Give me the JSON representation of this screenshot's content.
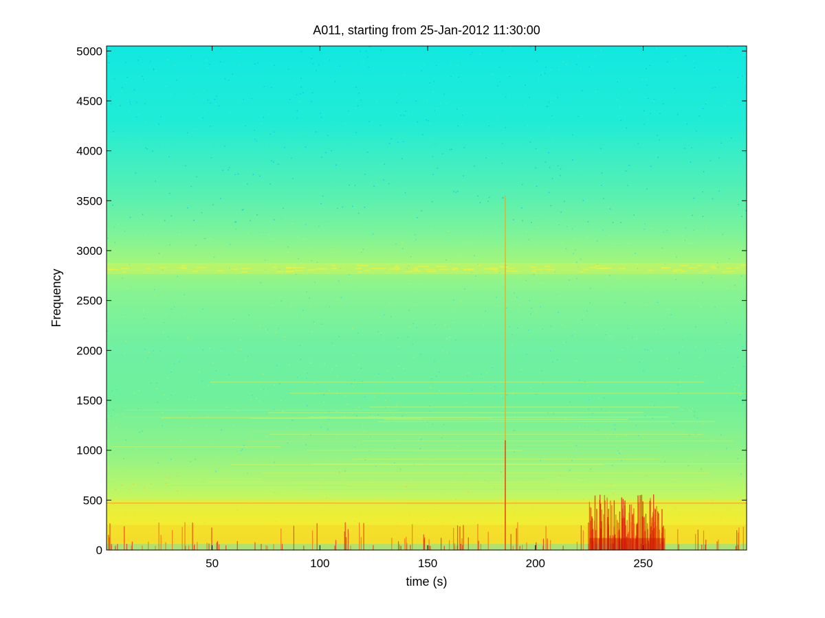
{
  "chart_data": {
    "type": "heatmap",
    "subtype": "spectrogram",
    "title": "A011, starting from 25-Jan-2012 11:30:00",
    "xlabel": "time (s)",
    "ylabel": "Frequency",
    "xlim": [
      1,
      298
    ],
    "ylim": [
      0,
      5050
    ],
    "xticks": [
      50,
      100,
      150,
      200,
      250
    ],
    "xtick_labels": [
      "50",
      "100",
      "150",
      "200",
      "250"
    ],
    "yticks": [
      0,
      500,
      1000,
      1500,
      2000,
      2500,
      3000,
      3500,
      4000,
      4500,
      5000
    ],
    "ytick_labels": [
      "0",
      "500",
      "1000",
      "1500",
      "2000",
      "2500",
      "3000",
      "3500",
      "4000",
      "4500",
      "5000"
    ],
    "colormap": "jet",
    "grid": false,
    "legend": "none",
    "features": {
      "band_center_hz": 2820,
      "vertical_event_time_s": 186,
      "vertical_event_max_freq_hz": 3550,
      "horizontal_line_hz": 470,
      "burst_cluster_time_range_s": [
        225,
        260
      ]
    }
  }
}
